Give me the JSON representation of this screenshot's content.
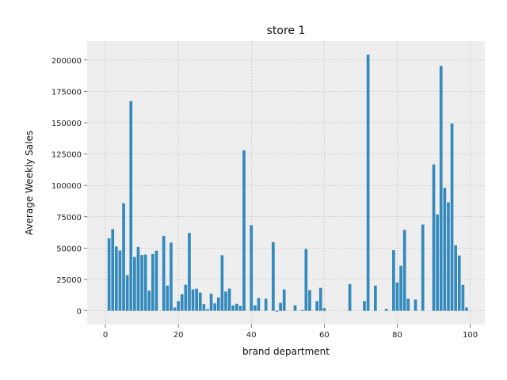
{
  "chart_data": {
    "type": "bar",
    "title": "store 1",
    "xlabel": "brand department",
    "ylabel": "Average Weekly Sales",
    "xlim": [
      -5,
      104
    ],
    "ylim": [
      -11000,
      215000
    ],
    "x_ticks": [
      0,
      20,
      40,
      60,
      80,
      100
    ],
    "y_ticks": [
      0,
      25000,
      50000,
      75000,
      100000,
      125000,
      150000,
      175000,
      200000
    ],
    "grid": true,
    "bar_color": "#348abd",
    "background_color": "#eeeeee",
    "grid_color": "#b0b0b0",
    "x": [
      1,
      2,
      3,
      4,
      5,
      6,
      7,
      8,
      9,
      10,
      11,
      12,
      13,
      14,
      16,
      17,
      18,
      19,
      20,
      21,
      22,
      23,
      24,
      25,
      26,
      27,
      28,
      29,
      30,
      31,
      32,
      33,
      34,
      35,
      36,
      37,
      38,
      40,
      41,
      42,
      44,
      46,
      47,
      48,
      49,
      52,
      54,
      55,
      56,
      58,
      59,
      60,
      67,
      71,
      72,
      74,
      77,
      79,
      80,
      81,
      82,
      83,
      85,
      87,
      90,
      91,
      92,
      93,
      94,
      95,
      96,
      97,
      98,
      99
    ],
    "values": [
      57800,
      65200,
      51200,
      48100,
      85700,
      28400,
      167200,
      42900,
      50900,
      44500,
      44800,
      16000,
      45200,
      47900,
      59800,
      20100,
      54400,
      2600,
      7700,
      13300,
      20800,
      62100,
      17100,
      17600,
      14500,
      5300,
      1300,
      13700,
      5900,
      10600,
      44300,
      15300,
      17700,
      4300,
      5600,
      3900,
      128000,
      68300,
      4300,
      10200,
      9600,
      54800,
      -700,
      6300,
      17100,
      4400,
      700,
      49300,
      16500,
      7700,
      18300,
      2100,
      21300,
      7800,
      204300,
      20100,
      1500,
      48300,
      22600,
      35900,
      64500,
      9700,
      9000,
      68800,
      116700,
      76800,
      195300,
      98100,
      86500,
      149300,
      52300,
      44100,
      20700,
      2600
    ]
  }
}
